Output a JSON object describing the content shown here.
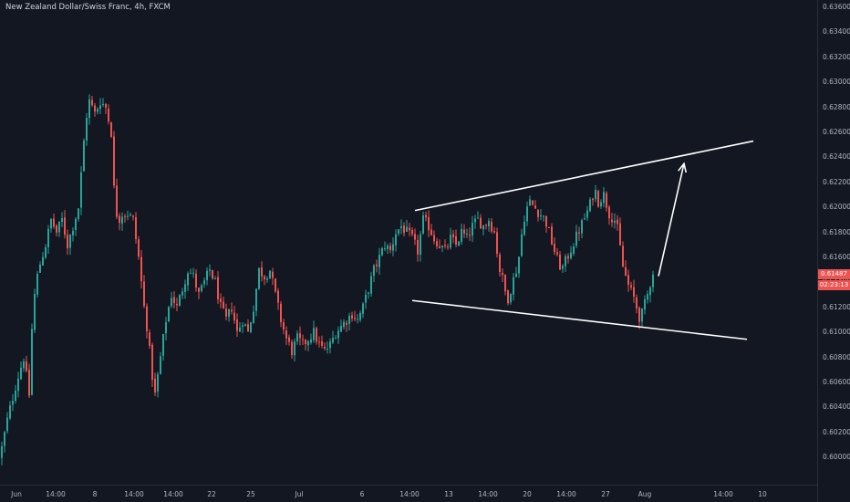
{
  "title": "New Zealand Dollar/Swiss Franc, 4h, FXCM",
  "colors": {
    "background": "#131722",
    "up": "#26a69a",
    "down": "#ef5350",
    "drawing": "#ffffff",
    "axis_text": "#b2b5be"
  },
  "price_axis": {
    "labels": [
      "0.63600",
      "0.63400",
      "0.63200",
      "0.63000",
      "0.62800",
      "0.62600",
      "0.62400",
      "0.62200",
      "0.62000",
      "0.61800",
      "0.61600",
      "0.61400",
      "0.61200",
      "0.61000",
      "0.60800",
      "0.60600",
      "0.60400",
      "0.60200",
      "0.60000"
    ]
  },
  "time_axis": {
    "labels": [
      "Jun",
      "14:00",
      "8",
      "14:00",
      "14:00",
      "22",
      "25",
      "Jul",
      "6",
      "14:00",
      "13",
      "14:00",
      "20",
      "14:00",
      "27",
      "Aug",
      "14:00",
      "10"
    ]
  },
  "current_price": {
    "value": "0.61487",
    "countdown": "02:23:13"
  },
  "chart_data": {
    "type": "candlestick",
    "title": "New Zealand Dollar/Swiss Franc, 4h, FXCM",
    "ylim": [
      0.5985,
      0.6365
    ],
    "close_path": [
      [
        0,
        0.6
      ],
      [
        8,
        0.603
      ],
      [
        18,
        0.606
      ],
      [
        26,
        0.608
      ],
      [
        32,
        0.605
      ],
      [
        36,
        0.612
      ],
      [
        42,
        0.615
      ],
      [
        50,
        0.617
      ],
      [
        56,
        0.619
      ],
      [
        62,
        0.618
      ],
      [
        68,
        0.619
      ],
      [
        74,
        0.617
      ],
      [
        80,
        0.6185
      ],
      [
        86,
        0.62
      ],
      [
        90,
        0.6235
      ],
      [
        94,
        0.627
      ],
      [
        98,
        0.6285
      ],
      [
        104,
        0.6275
      ],
      [
        110,
        0.6285
      ],
      [
        116,
        0.628
      ],
      [
        122,
        0.626
      ],
      [
        126,
        0.62
      ],
      [
        130,
        0.619
      ],
      [
        134,
        0.6195
      ],
      [
        140,
        0.6195
      ],
      [
        146,
        0.619
      ],
      [
        152,
        0.616
      ],
      [
        158,
        0.612
      ],
      [
        162,
        0.61
      ],
      [
        166,
        0.607
      ],
      [
        170,
        0.605
      ],
      [
        176,
        0.608
      ],
      [
        182,
        0.611
      ],
      [
        188,
        0.613
      ],
      [
        194,
        0.612
      ],
      [
        200,
        0.6135
      ],
      [
        206,
        0.615
      ],
      [
        212,
        0.6145
      ],
      [
        218,
        0.613
      ],
      [
        224,
        0.614
      ],
      [
        230,
        0.615
      ],
      [
        236,
        0.614
      ],
      [
        242,
        0.612
      ],
      [
        248,
        0.611
      ],
      [
        254,
        0.612
      ],
      [
        260,
        0.61
      ],
      [
        266,
        0.611
      ],
      [
        272,
        0.61
      ],
      [
        278,
        0.612
      ],
      [
        284,
        0.615
      ],
      [
        290,
        0.6145
      ],
      [
        296,
        0.615
      ],
      [
        302,
        0.613
      ],
      [
        308,
        0.611
      ],
      [
        314,
        0.6095
      ],
      [
        320,
        0.6085
      ],
      [
        326,
        0.6095
      ],
      [
        332,
        0.609
      ],
      [
        338,
        0.6095
      ],
      [
        344,
        0.61
      ],
      [
        350,
        0.609
      ],
      [
        356,
        0.6085
      ],
      [
        362,
        0.609
      ],
      [
        368,
        0.61
      ],
      [
        374,
        0.6105
      ],
      [
        380,
        0.611
      ],
      [
        386,
        0.6115
      ],
      [
        392,
        0.611
      ],
      [
        398,
        0.612
      ],
      [
        404,
        0.6135
      ],
      [
        410,
        0.615
      ],
      [
        416,
        0.616
      ],
      [
        422,
        0.617
      ],
      [
        428,
        0.6165
      ],
      [
        434,
        0.618
      ],
      [
        440,
        0.6185
      ],
      [
        446,
        0.618
      ],
      [
        452,
        0.6175
      ],
      [
        458,
        0.6165
      ],
      [
        464,
        0.619
      ],
      [
        470,
        0.6185
      ],
      [
        476,
        0.6175
      ],
      [
        482,
        0.617
      ],
      [
        488,
        0.6165
      ],
      [
        494,
        0.6175
      ],
      [
        500,
        0.617
      ],
      [
        506,
        0.618
      ],
      [
        512,
        0.6175
      ],
      [
        518,
        0.6185
      ],
      [
        524,
        0.619
      ],
      [
        530,
        0.6185
      ],
      [
        536,
        0.619
      ],
      [
        542,
        0.618
      ],
      [
        548,
        0.615
      ],
      [
        552,
        0.614
      ],
      [
        556,
        0.6125
      ],
      [
        562,
        0.614
      ],
      [
        568,
        0.6155
      ],
      [
        574,
        0.619
      ],
      [
        580,
        0.6205
      ],
      [
        586,
        0.62
      ],
      [
        592,
        0.6195
      ],
      [
        598,
        0.619
      ],
      [
        604,
        0.6175
      ],
      [
        610,
        0.616
      ],
      [
        616,
        0.615
      ],
      [
        622,
        0.616
      ],
      [
        628,
        0.617
      ],
      [
        634,
        0.618
      ],
      [
        640,
        0.619
      ],
      [
        646,
        0.62
      ],
      [
        652,
        0.6215
      ],
      [
        656,
        0.6205
      ],
      [
        662,
        0.621
      ],
      [
        668,
        0.6195
      ],
      [
        674,
        0.619
      ],
      [
        678,
        0.618
      ],
      [
        682,
        0.6155
      ],
      [
        686,
        0.6145
      ],
      [
        690,
        0.6135
      ],
      [
        694,
        0.613
      ],
      [
        698,
        0.612
      ],
      [
        702,
        0.611
      ],
      [
        706,
        0.612
      ],
      [
        710,
        0.613
      ],
      [
        716,
        0.6149
      ]
    ],
    "trendlines": [
      {
        "from": [
          455,
          0.61975
        ],
        "to": [
          826,
          0.6253
        ]
      },
      {
        "from": [
          452,
          0.61255
        ],
        "to": [
          819,
          0.60945
        ]
      }
    ],
    "arrow": {
      "from": [
        722,
        0.6145
      ],
      "to": [
        750,
        0.6235
      ]
    }
  }
}
